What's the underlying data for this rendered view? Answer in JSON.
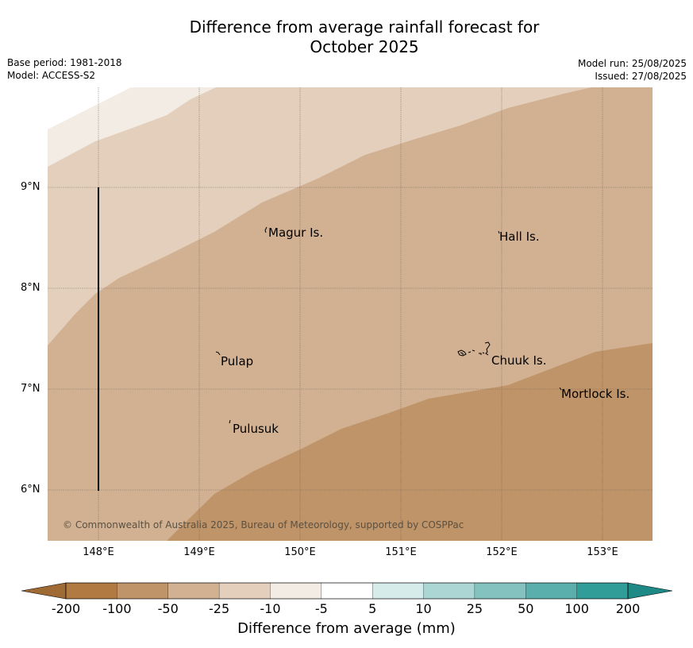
{
  "header": {
    "title_line1": "Difference from average rainfall forecast for",
    "title_line2": "October 2025",
    "base_period": "Base period: 1981-2018",
    "model": "Model: ACCESS-S2",
    "model_run": "Model run: 25/08/2025",
    "issued": "Issued: 27/08/2025"
  },
  "map": {
    "lat_labels": [
      "9°N",
      "8°N",
      "7°N",
      "6°N"
    ],
    "lon_labels": [
      "148°E",
      "149°E",
      "150°E",
      "151°E",
      "152°E",
      "153°E"
    ],
    "places": [
      "Magur Is.",
      "Hall Is.",
      "Pulap",
      "Chuuk Is.",
      "Mortlock Is.",
      "Pulusuk"
    ],
    "copyright": "© Commonwealth of Australia 2025, Bureau of Meteorology, supported by COSPPac",
    "region_colors": {
      "-200": "#b07a42",
      "-100": "#c09469",
      "-50": "#d1b192",
      "-25": "#e3cfbc",
      "-10": "#f2ece4"
    }
  },
  "colorbar": {
    "ticks": [
      "-200",
      "-100",
      "-50",
      "-25",
      "-10",
      "-5",
      "5",
      "10",
      "25",
      "50",
      "100",
      "200"
    ],
    "colors": [
      "#b07a42",
      "#c09469",
      "#d1b192",
      "#e3cfbc",
      "#f2ece4",
      "#ffffff",
      "#d6ecea",
      "#acd6d3",
      "#83c2bf",
      "#5aaeab",
      "#319d99",
      "#1d8a86"
    ],
    "label": "Difference from average (mm)"
  }
}
